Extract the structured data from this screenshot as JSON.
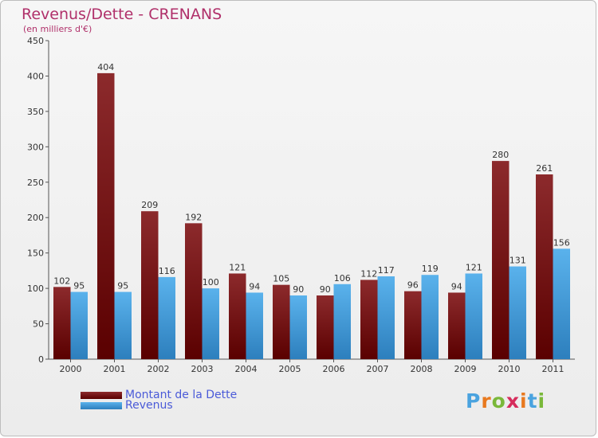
{
  "chart_data": {
    "type": "bar",
    "title": "Revenus/Dette - CRENANS",
    "subtitle": "(en milliers d'€)",
    "categories": [
      "2000",
      "2001",
      "2002",
      "2003",
      "2004",
      "2005",
      "2006",
      "2007",
      "2008",
      "2009",
      "2010",
      "2011"
    ],
    "series": [
      {
        "name": "Montant de la Dette",
        "values": [
          102,
          404,
          209,
          192,
          121,
          105,
          90,
          112,
          96,
          94,
          280,
          261
        ],
        "color": "#7a1418"
      },
      {
        "name": "Revenus",
        "values": [
          95,
          95,
          116,
          100,
          94,
          90,
          106,
          117,
          119,
          121,
          131,
          156
        ],
        "color": "#4aa3df"
      }
    ],
    "ylim": [
      0,
      450
    ],
    "yticks": [
      0,
      50,
      100,
      150,
      200,
      250,
      300,
      350,
      400,
      450
    ],
    "grid": false,
    "legend": "bottom-left"
  },
  "legend": {
    "dette_label": "Montant de la Dette",
    "revenus_label": "Revenus"
  },
  "logo": {
    "text": "Proxiti",
    "letter_colors": [
      "#4aa3df",
      "#e8791f",
      "#7ab83a",
      "#d62c5c",
      "#e8791f",
      "#4aa3df",
      "#7ab83a"
    ]
  }
}
